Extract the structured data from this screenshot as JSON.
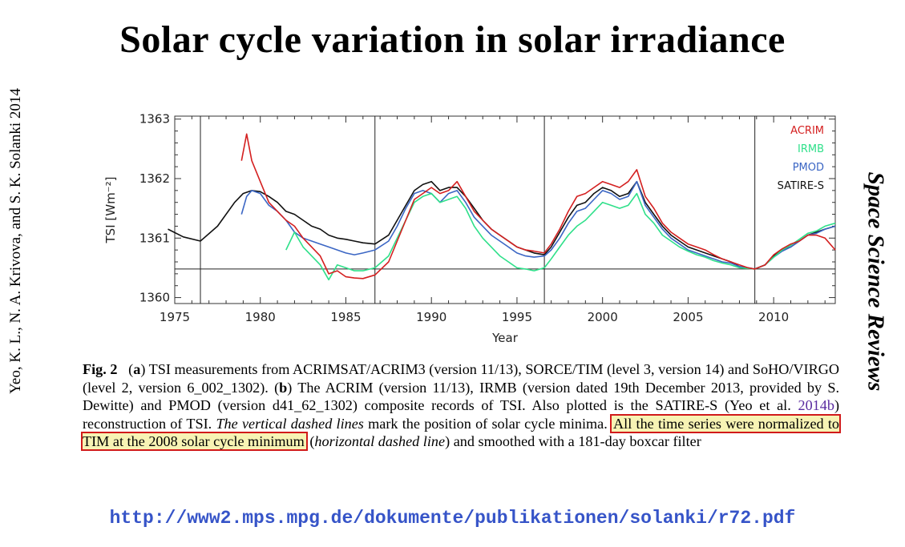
{
  "title": "Solar cycle variation in solar irradiance",
  "credit": "Yeo, K. L., N. A. Krivova, and S. K. Solanki 2014",
  "journal": "Space Science Reviews",
  "url": "http://www2.mps.mpg.de/dokumente/publikationen/solanki/r72.pdf",
  "caption": {
    "fig": "Fig. 2",
    "a": "a",
    "p1": ") TSI measurements from ACRIMSAT/ACRIM3 (version 11/13), SORCE/TIM (level 3, version 14) and SoHO/VIRGO (level 2, version 6_002_1302). (",
    "b": "b",
    "p2": ") The ACRIM (version 11/13), IRMB (version dated 19th December 2013, provided by S. Dewitte) and PMOD (version d41_62_1302) composite records of TSI. Also plotted is the SATIRE-S (Yeo et al. ",
    "cite": "2014b",
    "p3": ") reconstruction of TSI. ",
    "italic1": "The vertical dashed lines",
    "p4": " mark the position of solar cycle minima. ",
    "highlight": "All the time series were normalized to TIM at the 2008 solar cycle minimum",
    "p5": " (",
    "italic2": "horizontal dashed line",
    "p6": ") and smoothed with a 181-day boxcar filter"
  },
  "chart_data": {
    "type": "line",
    "xlabel": "Year",
    "ylabel": "TSI [Wm⁻²]",
    "xlim": [
      1975,
      2013.6
    ],
    "ylim": [
      1359.9,
      1363.05
    ],
    "xticks": [
      1975,
      1980,
      1985,
      1990,
      1995,
      2000,
      2005,
      2010
    ],
    "yticks": [
      1360,
      1361,
      1362,
      1363
    ],
    "vlines": [
      1976.5,
      1986.7,
      1996.6,
      2008.9
    ],
    "hline": 1360.48,
    "legend_position": "top-right",
    "series": [
      {
        "name": "SATIRE-S",
        "color": "#111111",
        "x": [
          1974.6,
          1975.5,
          1976.5,
          1977.5,
          1978.5,
          1979.0,
          1979.5,
          1980.0,
          1980.5,
          1981.0,
          1981.5,
          1982.0,
          1982.5,
          1983.0,
          1983.5,
          1984.0,
          1984.5,
          1985.0,
          1985.5,
          1986.0,
          1986.7,
          1987.5,
          1988.0,
          1988.5,
          1989.0,
          1989.5,
          1990.0,
          1990.5,
          1991.0,
          1991.5,
          1992.0,
          1992.5,
          1993.0,
          1993.5,
          1994.0,
          1994.5,
          1995.0,
          1995.5,
          1996.0,
          1996.6,
          1997.0,
          1997.5,
          1998.0,
          1998.5,
          1999.0,
          1999.5,
          2000.0,
          2000.5,
          2001.0,
          2001.5,
          2002.0,
          2002.5,
          2003.0,
          2003.5,
          2004.0,
          2004.5,
          2005.0,
          2005.5,
          2006.0,
          2006.5,
          2007.0,
          2007.5,
          2008.0,
          2008.5,
          2008.9,
          2009.5,
          2010.0,
          2010.5,
          2011.0,
          2011.5,
          2012.0,
          2012.5,
          2013.0,
          2013.6
        ],
        "y": [
          1361.15,
          1361.02,
          1360.95,
          1361.2,
          1361.6,
          1361.75,
          1361.8,
          1361.78,
          1361.7,
          1361.6,
          1361.45,
          1361.4,
          1361.3,
          1361.2,
          1361.15,
          1361.05,
          1361.0,
          1360.98,
          1360.95,
          1360.92,
          1360.9,
          1361.05,
          1361.3,
          1361.55,
          1361.8,
          1361.9,
          1361.95,
          1361.8,
          1361.85,
          1361.85,
          1361.7,
          1361.5,
          1361.3,
          1361.15,
          1361.05,
          1360.95,
          1360.85,
          1360.8,
          1360.75,
          1360.72,
          1360.85,
          1361.1,
          1361.35,
          1361.55,
          1361.6,
          1361.75,
          1361.85,
          1361.8,
          1361.7,
          1361.75,
          1361.95,
          1361.6,
          1361.4,
          1361.2,
          1361.05,
          1360.95,
          1360.85,
          1360.8,
          1360.75,
          1360.7,
          1360.65,
          1360.6,
          1360.52,
          1360.5,
          1360.48,
          1360.55,
          1360.7,
          1360.8,
          1360.85,
          1360.95,
          1361.05,
          1361.1,
          1361.15,
          1361.2
        ]
      },
      {
        "name": "PMOD",
        "color": "#3b66c4",
        "x": [
          1978.9,
          1979.2,
          1979.5,
          1980.0,
          1980.5,
          1981.0,
          1981.5,
          1982.0,
          1982.5,
          1983.0,
          1983.5,
          1984.0,
          1984.5,
          1985.0,
          1985.5,
          1986.0,
          1986.7,
          1987.5,
          1988.0,
          1988.5,
          1989.0,
          1989.5,
          1990.0,
          1990.5,
          1991.0,
          1991.5,
          1992.0,
          1992.5,
          1993.0,
          1993.5,
          1994.0,
          1994.5,
          1995.0,
          1995.5,
          1996.0,
          1996.6,
          1997.0,
          1997.5,
          1998.0,
          1998.5,
          1999.0,
          1999.5,
          2000.0,
          2000.5,
          2001.0,
          2001.5,
          2002.0,
          2002.5,
          2003.0,
          2003.5,
          2004.0,
          2004.5,
          2005.0,
          2005.5,
          2006.0,
          2006.5,
          2007.0,
          2007.5,
          2008.0,
          2008.5,
          2008.9,
          2009.5,
          2010.0,
          2010.5,
          2011.0,
          2011.5,
          2012.0,
          2012.5,
          2013.0,
          2013.6
        ],
        "y": [
          1361.4,
          1361.7,
          1361.8,
          1361.75,
          1361.55,
          1361.45,
          1361.3,
          1361.1,
          1361.0,
          1360.95,
          1360.9,
          1360.85,
          1360.8,
          1360.75,
          1360.72,
          1360.75,
          1360.8,
          1360.95,
          1361.2,
          1361.5,
          1361.75,
          1361.8,
          1361.75,
          1361.6,
          1361.75,
          1361.8,
          1361.6,
          1361.35,
          1361.2,
          1361.05,
          1360.95,
          1360.85,
          1360.75,
          1360.7,
          1360.68,
          1360.7,
          1360.8,
          1361.0,
          1361.25,
          1361.45,
          1361.5,
          1361.65,
          1361.8,
          1361.75,
          1361.65,
          1361.7,
          1361.95,
          1361.55,
          1361.35,
          1361.15,
          1361.0,
          1360.9,
          1360.8,
          1360.75,
          1360.7,
          1360.65,
          1360.6,
          1360.58,
          1360.52,
          1360.5,
          1360.48,
          1360.55,
          1360.68,
          1360.78,
          1360.85,
          1360.95,
          1361.05,
          1361.08,
          1361.15,
          1361.2
        ]
      },
      {
        "name": "IRMB",
        "color": "#2fe08a",
        "x": [
          1981.5,
          1982.0,
          1982.5,
          1983.0,
          1983.5,
          1984.0,
          1984.5,
          1985.0,
          1985.5,
          1986.0,
          1986.7,
          1987.5,
          1988.0,
          1988.5,
          1989.0,
          1989.5,
          1990.0,
          1990.5,
          1991.0,
          1991.5,
          1992.0,
          1992.5,
          1993.0,
          1993.5,
          1994.0,
          1994.5,
          1995.0,
          1995.5,
          1996.0,
          1996.6,
          1997.0,
          1997.5,
          1998.0,
          1998.5,
          1999.0,
          1999.5,
          2000.0,
          2000.5,
          2001.0,
          2001.5,
          2002.0,
          2002.5,
          2003.0,
          2003.5,
          2004.0,
          2004.5,
          2005.0,
          2005.5,
          2006.0,
          2006.5,
          2007.0,
          2007.5,
          2008.0,
          2008.5,
          2008.9,
          2009.5,
          2010.0,
          2010.5,
          2011.0,
          2011.5,
          2012.0,
          2012.5,
          2013.0,
          2013.6
        ],
        "y": [
          1360.8,
          1361.1,
          1360.85,
          1360.7,
          1360.55,
          1360.3,
          1360.55,
          1360.5,
          1360.45,
          1360.45,
          1360.5,
          1360.7,
          1361.0,
          1361.3,
          1361.6,
          1361.7,
          1361.75,
          1361.6,
          1361.65,
          1361.7,
          1361.5,
          1361.2,
          1361.0,
          1360.85,
          1360.7,
          1360.6,
          1360.5,
          1360.48,
          1360.45,
          1360.5,
          1360.65,
          1360.85,
          1361.05,
          1361.2,
          1361.3,
          1361.45,
          1361.6,
          1361.55,
          1361.5,
          1361.55,
          1361.75,
          1361.4,
          1361.25,
          1361.05,
          1360.95,
          1360.85,
          1360.78,
          1360.72,
          1360.68,
          1360.62,
          1360.58,
          1360.55,
          1360.5,
          1360.49,
          1360.48,
          1360.55,
          1360.68,
          1360.8,
          1360.88,
          1360.98,
          1361.08,
          1361.12,
          1361.2,
          1361.25
        ]
      },
      {
        "name": "ACRIM",
        "color": "#d42020",
        "x": [
          1978.9,
          1979.2,
          1979.5,
          1980.0,
          1980.5,
          1981.0,
          1981.5,
          1982.0,
          1982.5,
          1983.0,
          1983.5,
          1984.0,
          1984.5,
          1985.0,
          1985.5,
          1986.0,
          1986.7,
          1987.5,
          1988.0,
          1988.5,
          1989.0,
          1989.5,
          1990.0,
          1990.5,
          1991.0,
          1991.5,
          1992.0,
          1992.5,
          1993.0,
          1993.5,
          1994.0,
          1994.5,
          1995.0,
          1995.5,
          1996.0,
          1996.6,
          1997.0,
          1997.5,
          1998.0,
          1998.5,
          1999.0,
          1999.5,
          2000.0,
          2000.5,
          2001.0,
          2001.5,
          2002.0,
          2002.5,
          2003.0,
          2003.5,
          2004.0,
          2004.5,
          2005.0,
          2005.5,
          2006.0,
          2006.5,
          2007.0,
          2007.5,
          2008.0,
          2008.5,
          2008.9,
          2009.5,
          2010.0,
          2010.5,
          2011.0,
          2011.5,
          2012.0,
          2012.5,
          2013.0,
          2013.6
        ],
        "y": [
          1362.3,
          1362.75,
          1362.3,
          1361.95,
          1361.6,
          1361.45,
          1361.3,
          1361.2,
          1361.0,
          1360.85,
          1360.7,
          1360.4,
          1360.45,
          1360.35,
          1360.33,
          1360.32,
          1360.38,
          1360.6,
          1360.95,
          1361.3,
          1361.65,
          1361.75,
          1361.85,
          1361.75,
          1361.8,
          1361.95,
          1361.7,
          1361.45,
          1361.3,
          1361.15,
          1361.05,
          1360.95,
          1360.85,
          1360.8,
          1360.78,
          1360.75,
          1360.9,
          1361.15,
          1361.45,
          1361.7,
          1361.75,
          1361.85,
          1361.95,
          1361.9,
          1361.85,
          1361.95,
          1362.15,
          1361.7,
          1361.5,
          1361.25,
          1361.1,
          1361.0,
          1360.9,
          1360.85,
          1360.8,
          1360.72,
          1360.65,
          1360.6,
          1360.55,
          1360.5,
          1360.48,
          1360.55,
          1360.72,
          1360.82,
          1360.9,
          1360.95,
          1361.05,
          1361.05,
          1361.0,
          1360.8
        ]
      }
    ]
  }
}
